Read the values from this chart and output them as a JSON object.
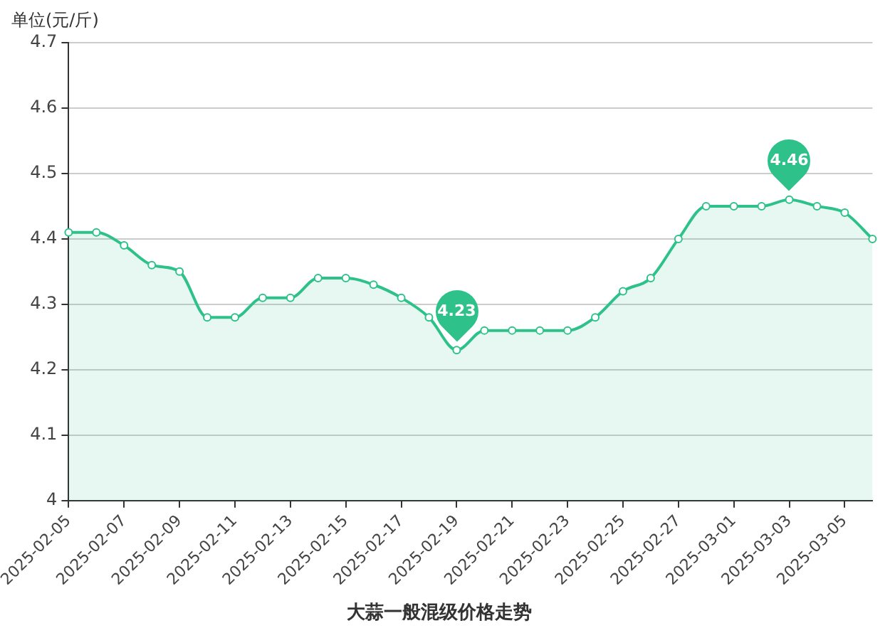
{
  "chart_data": {
    "type": "area",
    "title": "大蒜一般混级价格走势",
    "ylabel": "单位(元/斤)",
    "categories": [
      "2025-02-05",
      null,
      "2025-02-07",
      null,
      "2025-02-09",
      null,
      "2025-02-11",
      null,
      "2025-02-13",
      null,
      "2025-02-15",
      null,
      "2025-02-17",
      null,
      "2025-02-19",
      null,
      "2025-02-21",
      null,
      "2025-02-23",
      null,
      "2025-02-25",
      null,
      "2025-02-27",
      null,
      "2025-03-01",
      null,
      "2025-03-03",
      null,
      "2025-03-05",
      null
    ],
    "series": [
      {
        "color": "#2ec28a",
        "values": [
          4.41,
          4.41,
          4.39,
          4.36,
          4.35,
          4.28,
          4.28,
          4.31,
          4.31,
          4.34,
          4.34,
          4.33,
          4.31,
          4.28,
          4.23,
          4.26,
          4.26,
          4.26,
          4.26,
          4.28,
          4.32,
          4.34,
          4.4,
          4.45,
          4.45,
          4.45,
          4.46,
          4.45,
          4.44,
          4.4
        ]
      }
    ],
    "ylim": [
      4,
      4.7
    ],
    "yticks": [
      4,
      4.1,
      4.2,
      4.3,
      4.4,
      4.5,
      4.6,
      4.7
    ],
    "annotations": [
      {
        "text": "4.23",
        "x": "2025-02-19",
        "y": 4.23
      },
      {
        "text": "4.46",
        "x": "2025-03-03",
        "y": 4.46
      }
    ],
    "grid": "y",
    "legend": false,
    "marker": "circle",
    "line_style": "solid"
  }
}
